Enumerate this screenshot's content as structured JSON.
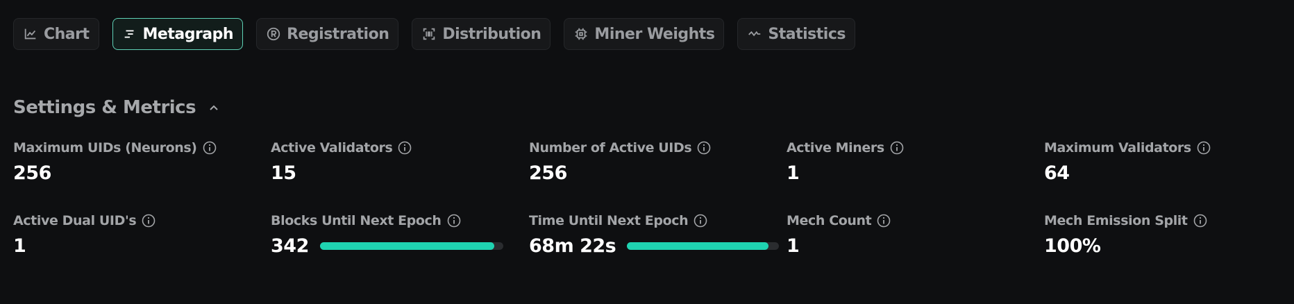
{
  "tabs": [
    {
      "label": "Chart",
      "active": false
    },
    {
      "label": "Metagraph",
      "active": true
    },
    {
      "label": "Registration",
      "active": false
    },
    {
      "label": "Distribution",
      "active": false
    },
    {
      "label": "Miner Weights",
      "active": false
    },
    {
      "label": "Statistics",
      "active": false
    }
  ],
  "section": {
    "title": "Settings & Metrics"
  },
  "metrics": [
    {
      "label": "Maximum UIDs (Neurons)",
      "value": "256"
    },
    {
      "label": "Active Validators",
      "value": "15"
    },
    {
      "label": "Number of Active UIDs",
      "value": "256"
    },
    {
      "label": "Active Miners",
      "value": "1"
    },
    {
      "label": "Maximum Validators",
      "value": "64"
    },
    {
      "label": "Active Dual UID's",
      "value": "1"
    },
    {
      "label": "Blocks Until Next Epoch",
      "value": "342"
    },
    {
      "label": "Time Until Next Epoch",
      "value": "68m 22s"
    },
    {
      "label": "Mech Count",
      "value": "1"
    },
    {
      "label": "Mech Emission Split",
      "value": "100%"
    }
  ]
}
